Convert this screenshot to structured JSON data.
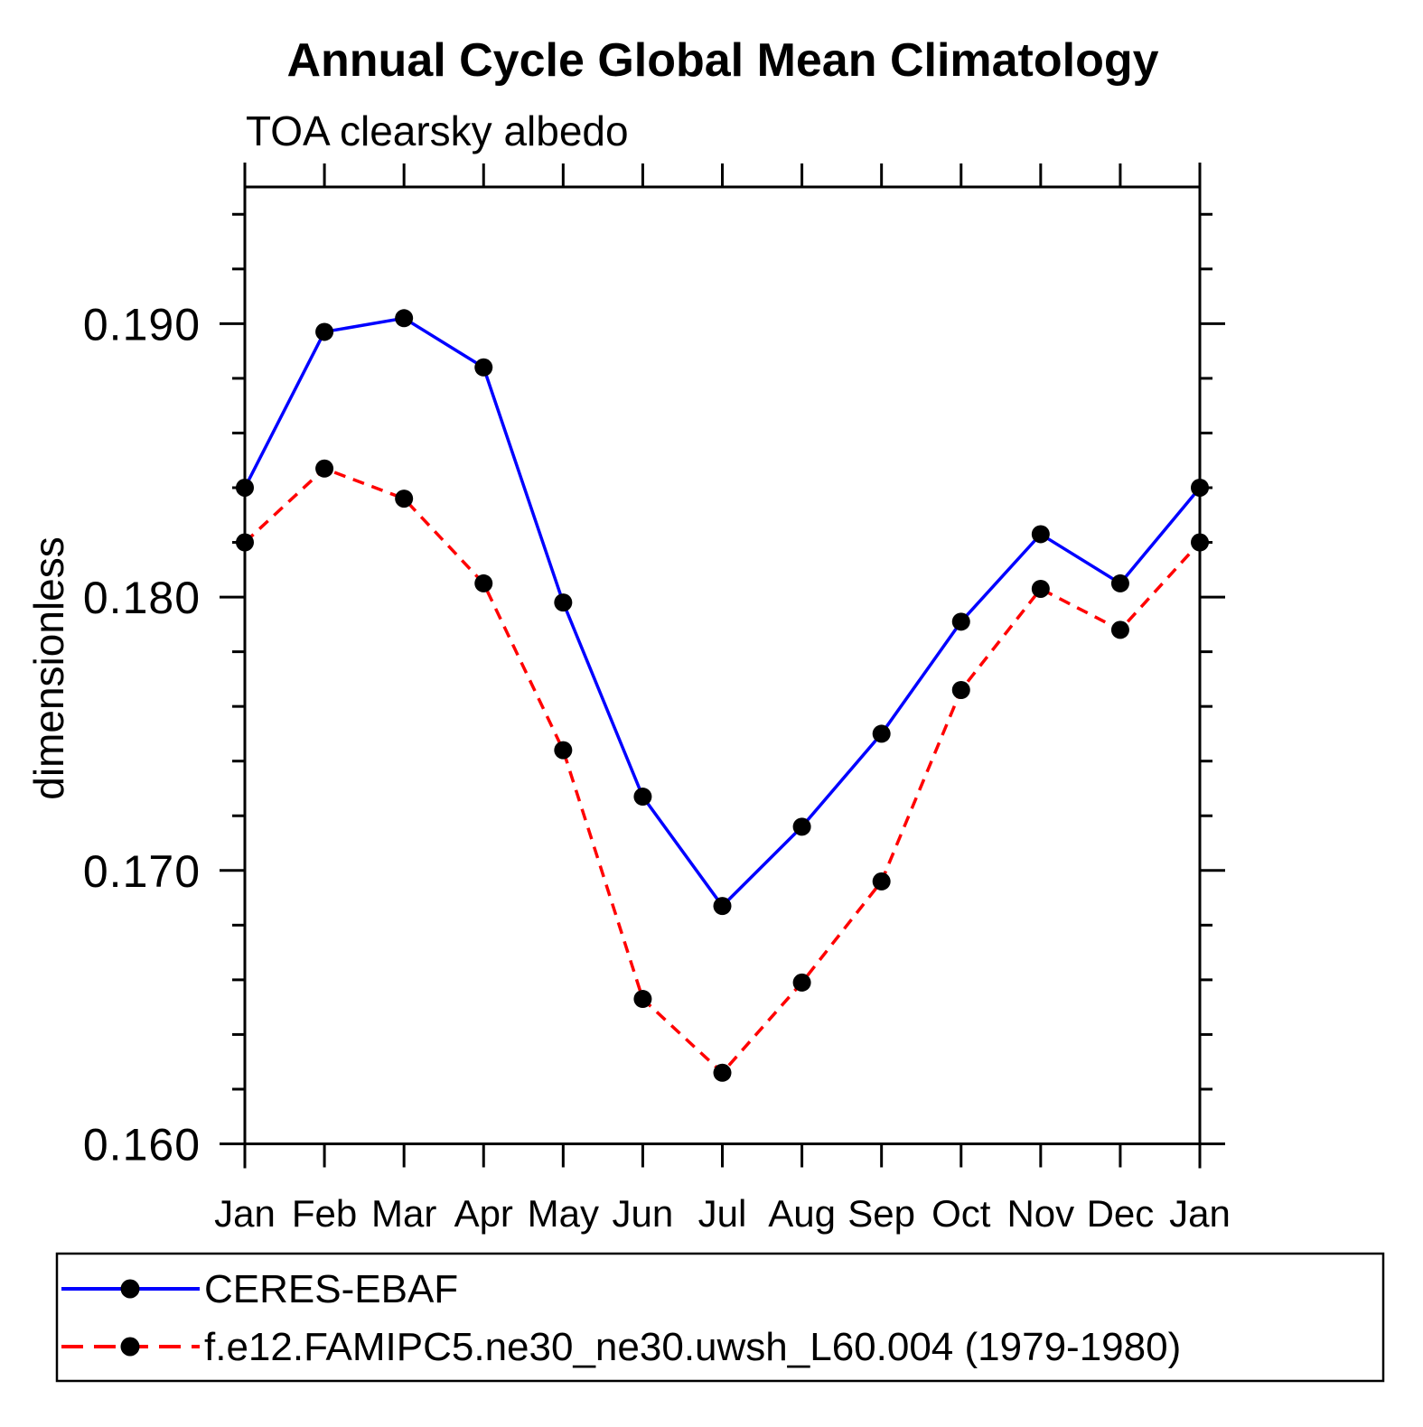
{
  "title": "Annual Cycle Global Mean Climatology",
  "subtitle": "TOA clearsky albedo",
  "ylabel": "dimensionless",
  "colors": {
    "obs_line": "#0000ff",
    "model_line": "#ff0000",
    "marker": "#000000",
    "axis": "#000000"
  },
  "legend": {
    "items": [
      {
        "label": "CERES-EBAF",
        "color": "#0000ff",
        "style": "solid",
        "marker": "filled-circle"
      },
      {
        "label": "f.e12.FAMIPC5.ne30_ne30.uwsh_L60.004 (1979-1980)",
        "color": "#ff0000",
        "style": "dashed",
        "marker": "filled-circle"
      }
    ]
  },
  "chart_data": {
    "type": "line",
    "title": "Annual Cycle Global Mean Climatology",
    "subtitle": "TOA clearsky albedo",
    "xlabel": "",
    "ylabel": "dimensionless",
    "categories": [
      "Jan",
      "Feb",
      "Mar",
      "Apr",
      "May",
      "Jun",
      "Jul",
      "Aug",
      "Sep",
      "Oct",
      "Nov",
      "Dec",
      "Jan"
    ],
    "series": [
      {
        "name": "CERES-EBAF",
        "color": "#0000ff",
        "line_style": "solid",
        "marker": "filled-circle",
        "marker_color": "#000000",
        "values": [
          0.184,
          0.1897,
          0.1902,
          0.1884,
          0.1798,
          0.1727,
          0.1687,
          0.1716,
          0.175,
          0.1791,
          0.1823,
          0.1805,
          0.184
        ]
      },
      {
        "name": "f.e12.FAMIPC5.ne30_ne30.uwsh_L60.004 (1979-1980)",
        "color": "#ff0000",
        "line_style": "dashed",
        "marker": "filled-circle",
        "marker_color": "#000000",
        "values": [
          0.182,
          0.1847,
          0.1836,
          0.1805,
          0.1744,
          0.1653,
          0.1626,
          0.1659,
          0.1696,
          0.1766,
          0.1803,
          0.1788,
          0.182
        ]
      }
    ],
    "y_axis": {
      "min": 0.16,
      "max": 0.195,
      "major_tick_step": 0.01,
      "minor_tick_step": 0.002,
      "major_tick_labels": [
        "0.160",
        "0.170",
        "0.180",
        "0.190"
      ]
    },
    "grid": false,
    "legend_position": "bottom",
    "ticks": "outward, mirrored on top and right axes"
  }
}
